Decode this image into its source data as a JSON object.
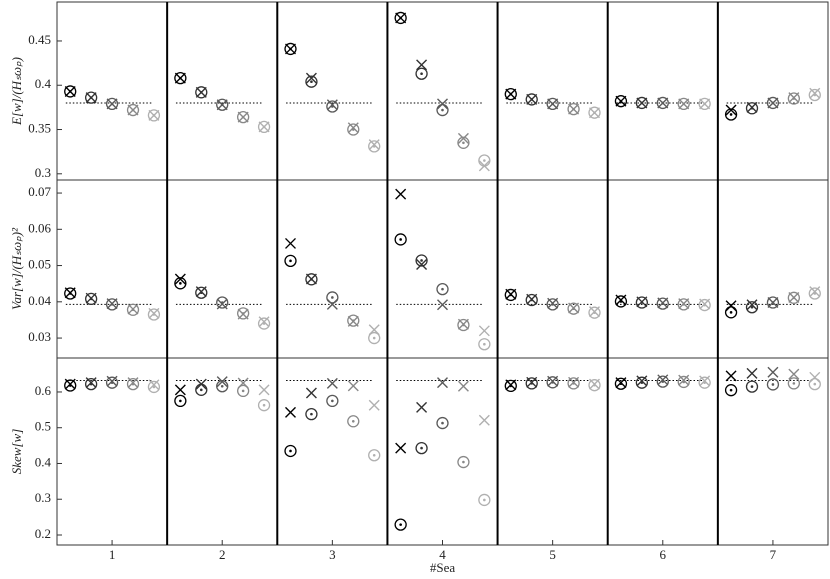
{
  "chart_data": [
    {
      "type": "scatter",
      "ylabel": "E[w]/(Hₛωₚ)",
      "ylim": [
        0.293,
        0.494
      ],
      "yticks": [
        0.3,
        0.35,
        0.4,
        0.45
      ],
      "reference": 0.38,
      "series": [
        {
          "marker": "circle-dot",
          "colors": [
            "#000000",
            "#333333",
            "#5a5a5a",
            "#888888",
            "#b0b0b0"
          ],
          "values": [
            [
              0.393,
              0.386,
              0.379,
              0.372,
              0.366
            ],
            [
              0.408,
              0.392,
              0.378,
              0.364,
              0.353
            ],
            [
              0.441,
              0.404,
              0.376,
              0.35,
              0.331
            ],
            [
              0.476,
              0.413,
              0.372,
              0.335,
              0.315
            ],
            [
              0.39,
              0.384,
              0.379,
              0.373,
              0.369
            ],
            [
              0.382,
              0.38,
              0.38,
              0.379,
              0.379
            ],
            [
              0.367,
              0.374,
              0.38,
              0.385,
              0.389
            ]
          ]
        },
        {
          "marker": "x",
          "colors": [
            "#000000",
            "#333333",
            "#5a5a5a",
            "#888888",
            "#b0b0b0"
          ],
          "values": [
            [
              0.393,
              0.386,
              0.379,
              0.372,
              0.366
            ],
            [
              0.408,
              0.392,
              0.378,
              0.364,
              0.353
            ],
            [
              0.441,
              0.408,
              0.378,
              0.352,
              0.333
            ],
            [
              0.476,
              0.423,
              0.379,
              0.34,
              0.309
            ],
            [
              0.39,
              0.384,
              0.379,
              0.373,
              0.369
            ],
            [
              0.382,
              0.38,
              0.38,
              0.379,
              0.379
            ],
            [
              0.372,
              0.375,
              0.38,
              0.386,
              0.391
            ]
          ]
        }
      ]
    },
    {
      "type": "scatter",
      "ylabel": "Var[w]/(Hₛωₚ)²",
      "ylim": [
        0.0245,
        0.0736
      ],
      "yticks": [
        0.03,
        0.04,
        0.05,
        0.06,
        0.07
      ],
      "reference": 0.0393,
      "series": [
        {
          "marker": "circle-dot",
          "colors": [
            "#000000",
            "#333333",
            "#5a5a5a",
            "#888888",
            "#b0b0b0"
          ],
          "values": [
            [
              0.0423,
              0.0408,
              0.0393,
              0.0378,
              0.0365
            ],
            [
              0.0451,
              0.0425,
              0.0398,
              0.0368,
              0.034
            ],
            [
              0.0513,
              0.0462,
              0.0412,
              0.0348,
              0.03
            ],
            [
              0.0572,
              0.0514,
              0.0435,
              0.0336,
              0.0283
            ],
            [
              0.0419,
              0.0405,
              0.0393,
              0.0381,
              0.037
            ],
            [
              0.0401,
              0.0398,
              0.0395,
              0.0393,
              0.0391
            ],
            [
              0.0371,
              0.0385,
              0.0398,
              0.0411,
              0.0423
            ]
          ]
        },
        {
          "marker": "x",
          "colors": [
            "#000000",
            "#333333",
            "#5a5a5a",
            "#888888",
            "#b0b0b0"
          ],
          "values": [
            [
              0.0425,
              0.041,
              0.0395,
              0.038,
              0.0368
            ],
            [
              0.0463,
              0.0428,
              0.0394,
              0.0366,
              0.0345
            ],
            [
              0.0561,
              0.0463,
              0.0393,
              0.0346,
              0.0323
            ],
            [
              0.0697,
              0.0503,
              0.0392,
              0.0338,
              0.032
            ],
            [
              0.0421,
              0.0407,
              0.0396,
              0.0383,
              0.0373
            ],
            [
              0.0405,
              0.04,
              0.0397,
              0.0395,
              0.0394
            ],
            [
              0.0389,
              0.0392,
              0.0398,
              0.0412,
              0.0428
            ]
          ]
        }
      ]
    },
    {
      "type": "scatter",
      "ylabel": "Skew[w]",
      "xlabel": "#Sea",
      "categories": [
        "1",
        "2",
        "3",
        "4",
        "5",
        "6",
        "7"
      ],
      "ylim": [
        0.172,
        0.695
      ],
      "yticks": [
        0.2,
        0.3,
        0.4,
        0.5,
        0.6
      ],
      "reference": 0.632,
      "series": [
        {
          "marker": "circle-dot",
          "colors": [
            "#000000",
            "#333333",
            "#5a5a5a",
            "#888888",
            "#b0b0b0"
          ],
          "values": [
            [
              0.618,
              0.622,
              0.626,
              0.622,
              0.614
            ],
            [
              0.575,
              0.606,
              0.616,
              0.603,
              0.563
            ],
            [
              0.435,
              0.538,
              0.575,
              0.518,
              0.423
            ],
            [
              0.229,
              0.443,
              0.513,
              0.404,
              0.298
            ],
            [
              0.617,
              0.624,
              0.627,
              0.624,
              0.619
            ],
            [
              0.623,
              0.626,
              0.629,
              0.628,
              0.626
            ],
            [
              0.605,
              0.615,
              0.621,
              0.624,
              0.622
            ]
          ]
        },
        {
          "marker": "x",
          "colors": [
            "#000000",
            "#333333",
            "#5a5a5a",
            "#888888",
            "#b0b0b0"
          ],
          "values": [
            [
              0.622,
              0.626,
              0.63,
              0.626,
              0.62
            ],
            [
              0.606,
              0.622,
              0.629,
              0.625,
              0.606
            ],
            [
              0.543,
              0.597,
              0.624,
              0.617,
              0.563
            ],
            [
              0.443,
              0.557,
              0.626,
              0.616,
              0.521
            ],
            [
              0.62,
              0.627,
              0.63,
              0.627,
              0.622
            ],
            [
              0.626,
              0.631,
              0.634,
              0.633,
              0.631
            ],
            [
              0.645,
              0.652,
              0.655,
              0.65,
              0.641
            ]
          ]
        }
      ]
    }
  ]
}
